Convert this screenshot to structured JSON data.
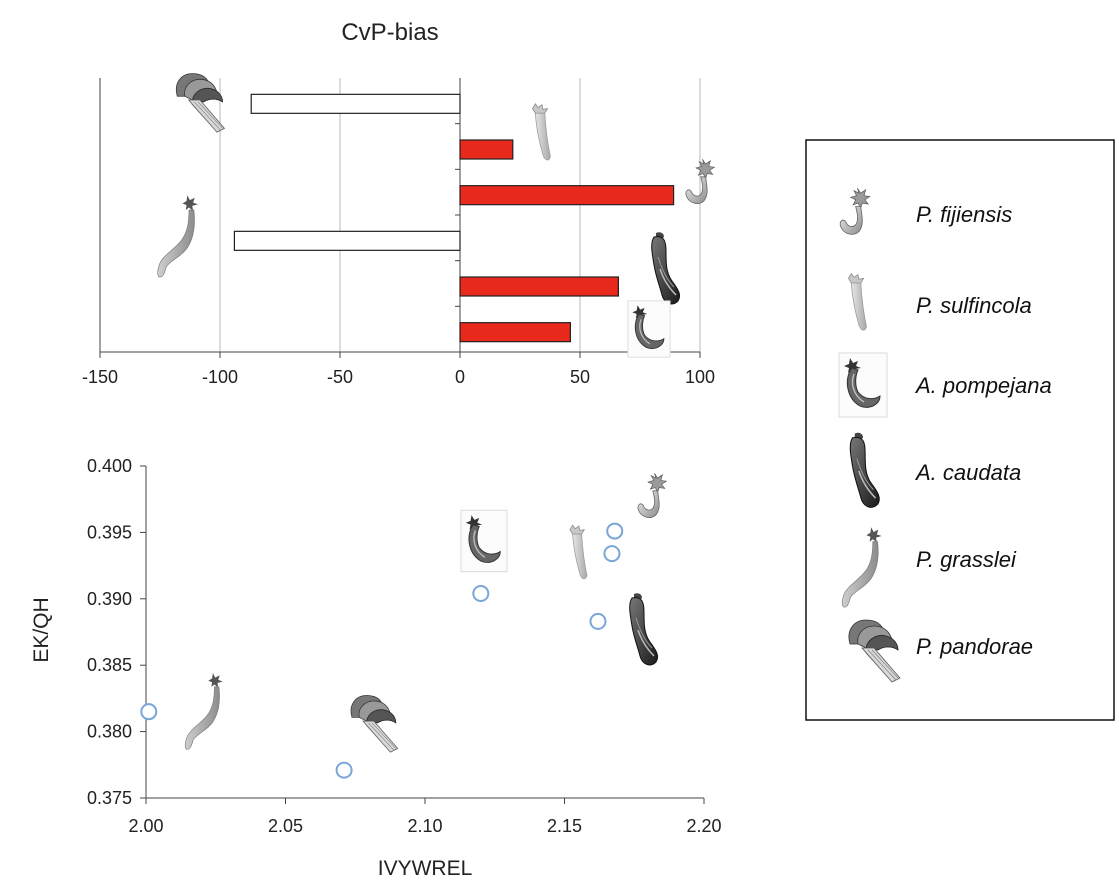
{
  "chart_data": [
    {
      "type": "bar",
      "orientation": "horizontal",
      "title": "CvP-bias",
      "xlim": [
        -150,
        100
      ],
      "xticks": [
        -150,
        -100,
        -50,
        0,
        50,
        100
      ],
      "grid": true,
      "categories": [
        "P. pandorae",
        "P. sulfincola",
        "P. fijiensis",
        "P. grasslei",
        "A. caudata",
        "A. pompejana"
      ],
      "values": [
        -87,
        22,
        89,
        -94,
        66,
        46
      ],
      "colors": {
        "positive": "#e8291c",
        "negative": "#ffffff"
      }
    },
    {
      "type": "scatter",
      "xlabel": "IVYWREL",
      "ylabel": "EK/QH",
      "xlim": [
        2.0,
        2.2
      ],
      "ylim": [
        0.375,
        0.4
      ],
      "xticks": [
        "2.00",
        "2.05",
        "2.10",
        "2.15",
        "2.20"
      ],
      "yticks": [
        "0.375",
        "0.380",
        "0.385",
        "0.390",
        "0.395",
        "0.400"
      ],
      "points": [
        {
          "species": "P. grasslei",
          "x": 2.001,
          "y": 0.3815
        },
        {
          "species": "P. pandorae",
          "x": 2.071,
          "y": 0.3771
        },
        {
          "species": "A. pompejana",
          "x": 2.12,
          "y": 0.3904
        },
        {
          "species": "A. caudata",
          "x": 2.162,
          "y": 0.3883
        },
        {
          "species": "P. sulfincola",
          "x": 2.167,
          "y": 0.3934
        },
        {
          "species": "P. fijiensis",
          "x": 2.168,
          "y": 0.3951
        }
      ],
      "marker_color": "#7aa6d8"
    }
  ],
  "legend": {
    "entries": [
      {
        "name": "P. fijiensis",
        "icon": "fijiensis-worm-icon"
      },
      {
        "name": "P. sulfincola",
        "icon": "sulfincola-worm-icon"
      },
      {
        "name": "A. pompejana",
        "icon": "pompejana-worm-icon"
      },
      {
        "name": "A. caudata",
        "icon": "caudata-worm-icon"
      },
      {
        "name": "P. grasslei",
        "icon": "grasslei-worm-icon"
      },
      {
        "name": "P. pandorae",
        "icon": "pandorae-worm-icon"
      }
    ]
  }
}
